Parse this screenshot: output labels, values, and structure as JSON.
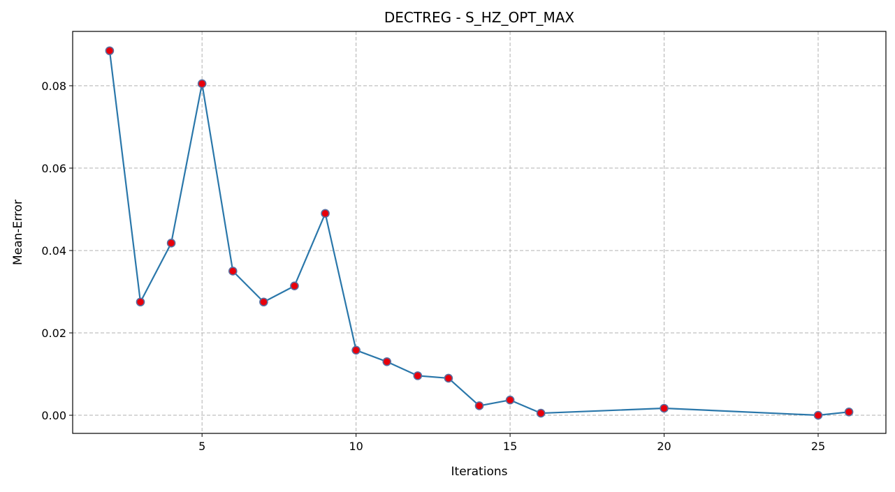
{
  "chart_data": {
    "type": "line",
    "title": "DECTREG - S_HZ_OPT_MAX",
    "xlabel": "Iterations",
    "ylabel": "Mean-Error",
    "xlim": [
      0.8,
      27.2
    ],
    "ylim": [
      -0.0044,
      0.0932
    ],
    "xticks": [
      5,
      10,
      15,
      20,
      25
    ],
    "xtick_labels": [
      "5",
      "10",
      "15",
      "20",
      "25"
    ],
    "yticks": [
      0.0,
      0.02,
      0.04,
      0.06,
      0.08
    ],
    "ytick_labels": [
      "0.00",
      "0.02",
      "0.04",
      "0.06",
      "0.08"
    ],
    "grid": true,
    "grid_style": "dashed",
    "series": [
      {
        "line_color": "#2a77aa",
        "marker_face_color": "#e8000b",
        "marker_edge_color": "#5a6fa0",
        "x": [
          2,
          3,
          4,
          5,
          6,
          7,
          8,
          9,
          10,
          11,
          12,
          13,
          14,
          15,
          16,
          20,
          25,
          26
        ],
        "y": [
          0.0885,
          0.0275,
          0.0418,
          0.0805,
          0.035,
          0.0275,
          0.0314,
          0.049,
          0.0158,
          0.013,
          0.0096,
          0.009,
          0.0023,
          0.0037,
          0.0005,
          0.0017,
          0.0,
          0.0008
        ]
      }
    ]
  }
}
